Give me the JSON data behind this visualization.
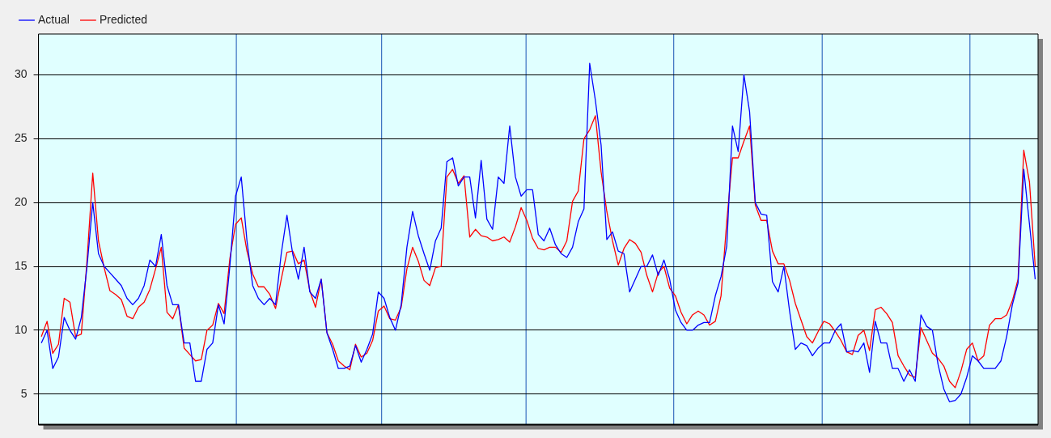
{
  "chart_data": {
    "type": "line",
    "categories": [
      null,
      null,
      null,
      null,
      null,
      null,
      null,
      null,
      null,
      null,
      null,
      null,
      null,
      null,
      null,
      null,
      null,
      null,
      null,
      null,
      null,
      null,
      null,
      null,
      null,
      null,
      null,
      null,
      null,
      null,
      null,
      null,
      null,
      null,
      null,
      null,
      null,
      null,
      null,
      null,
      null,
      null,
      null,
      null,
      null,
      null,
      null,
      null,
      null,
      null,
      null,
      null,
      null,
      null,
      null,
      null,
      null,
      null,
      null,
      null,
      null,
      null,
      null,
      null,
      null,
      null,
      null,
      null,
      null,
      null,
      null,
      null,
      null,
      null,
      null,
      null,
      null,
      null,
      null,
      null,
      null,
      null,
      null,
      null,
      null,
      null,
      null,
      null,
      null,
      null,
      null,
      null,
      null,
      null,
      null,
      null,
      null,
      null,
      null,
      null,
      null,
      null,
      null,
      null,
      null,
      null,
      null,
      null,
      null,
      null,
      null,
      null,
      null,
      null,
      null,
      null,
      null,
      null,
      null,
      null,
      null,
      null,
      null,
      null,
      null,
      null,
      null,
      null,
      null,
      null,
      null,
      null,
      null,
      null,
      null,
      null,
      null,
      null,
      null,
      null,
      null,
      null,
      null,
      null,
      null,
      null,
      null,
      null,
      null,
      null,
      null,
      null,
      null,
      null,
      null,
      null,
      null,
      null,
      null,
      null,
      null,
      null,
      null,
      null,
      null,
      null,
      null,
      null,
      null,
      null,
      null,
      null,
      null,
      null,
      null
    ],
    "ylim": [
      2.6,
      33.2
    ],
    "yticks": [
      5,
      10,
      15,
      20,
      25,
      30
    ],
    "grid": "y",
    "legend": "top left",
    "tick_labels": "y",
    "marker": "none",
    "line_style": "solid",
    "series": [
      {
        "name": "Actual",
        "color": "#0000ff",
        "values": [
          9,
          10,
          7,
          7.9,
          11,
          10,
          9.3,
          11,
          15,
          20,
          16,
          15,
          14.5,
          14,
          13.5,
          12.5,
          12,
          12.5,
          13.5,
          15.5,
          15,
          17.5,
          13.5,
          12,
          12,
          9,
          9,
          6,
          6,
          8.5,
          9,
          12,
          10.5,
          15,
          20.5,
          22,
          17,
          13.5,
          12.5,
          12,
          12.5,
          12,
          16,
          19,
          16,
          14,
          16.5,
          13,
          12.5,
          14,
          9.8,
          8.5,
          7,
          7,
          7.2,
          8.8,
          7.5,
          8.5,
          9.7,
          13,
          12.5,
          11,
          10,
          12,
          16.5,
          19.3,
          17.4,
          16,
          14.7,
          17,
          18,
          23.2,
          23.5,
          21.3,
          22,
          22,
          18.8,
          23.3,
          18.7,
          17.9,
          22,
          21.5,
          26,
          22,
          20.5,
          21,
          21,
          17.5,
          17,
          18,
          16.7,
          16,
          15.7,
          16.5,
          18.5,
          19.5,
          30.9,
          28,
          24.5,
          17.1,
          17.7,
          16.2,
          16,
          13,
          14,
          15,
          15,
          15.9,
          14.3,
          15.5,
          14,
          11.6,
          10.6,
          10,
          10,
          10.4,
          10.6,
          10.6,
          12.7,
          14.2,
          16.6,
          26,
          24,
          30,
          27.1,
          20,
          19.1,
          19,
          13.8,
          13,
          15,
          11.5,
          8.5,
          9,
          8.8,
          8,
          8.6,
          9,
          9,
          10,
          10.5,
          8.3,
          8.4,
          8.3,
          9,
          6.7,
          10.7,
          9,
          9,
          7,
          7,
          6,
          6.9,
          6,
          11.2,
          10.3,
          10,
          7.3,
          5.4,
          4.4,
          4.5,
          5,
          6.3,
          8,
          7.6,
          7,
          7,
          7,
          7.6,
          9.5,
          12,
          13.7,
          22.6,
          18.3,
          14
        ]
      },
      {
        "name": "Predicted",
        "color": "#ff0000",
        "values": [
          9.5,
          10.7,
          8.2,
          8.9,
          12.5,
          12.2,
          9.5,
          9.7,
          15.5,
          22.3,
          17,
          14.9,
          13.1,
          12.8,
          12.4,
          11.1,
          10.9,
          11.8,
          12.2,
          13.2,
          14.8,
          16.5,
          11.4,
          10.9,
          12,
          8.6,
          8.1,
          7.6,
          7.7,
          10,
          10.4,
          12.1,
          11.3,
          15.6,
          18.3,
          18.8,
          16.2,
          14.4,
          13.4,
          13.4,
          12.8,
          11.7,
          14,
          16.1,
          16.2,
          15.2,
          15.5,
          13.1,
          11.8,
          14,
          9.8,
          8.9,
          7.6,
          7.2,
          6.9,
          8.9,
          7.9,
          8.2,
          9.2,
          11.5,
          11.9,
          10.9,
          10.8,
          11.8,
          14.8,
          16.5,
          15.4,
          13.9,
          13.5,
          14.9,
          15,
          22,
          22.6,
          21.5,
          22.1,
          17.3,
          17.9,
          17.4,
          17.3,
          17,
          17.1,
          17.3,
          16.9,
          18.1,
          19.6,
          18.6,
          17.2,
          16.4,
          16.3,
          16.5,
          16.5,
          16.1,
          17,
          20.1,
          20.9,
          25,
          25.7,
          26.8,
          22.4,
          19.3,
          17,
          15.1,
          16.4,
          17.1,
          16.8,
          16.1,
          14.3,
          13,
          14.5,
          15,
          13.3,
          12.7,
          11.4,
          10.5,
          11.2,
          11.5,
          11.2,
          10.4,
          10.7,
          12.7,
          18.5,
          23.5,
          23.5,
          24.8,
          26,
          19.8,
          18.6,
          18.6,
          16.2,
          15.2,
          15.2,
          13.9,
          12.1,
          10.8,
          9.5,
          9,
          9.9,
          10.7,
          10.5,
          9.9,
          9.2,
          8.3,
          8.1,
          9.6,
          10,
          8.4,
          11.6,
          11.8,
          11.3,
          10.6,
          8,
          7.2,
          6.5,
          6.3,
          10.2,
          9.2,
          8.2,
          7.8,
          7.2,
          6,
          5.5,
          6.8,
          8.5,
          9,
          7.6,
          8,
          10.4,
          10.9,
          10.9,
          11.2,
          12.3,
          14,
          24.1,
          21.6,
          15
        ]
      }
    ]
  }
}
